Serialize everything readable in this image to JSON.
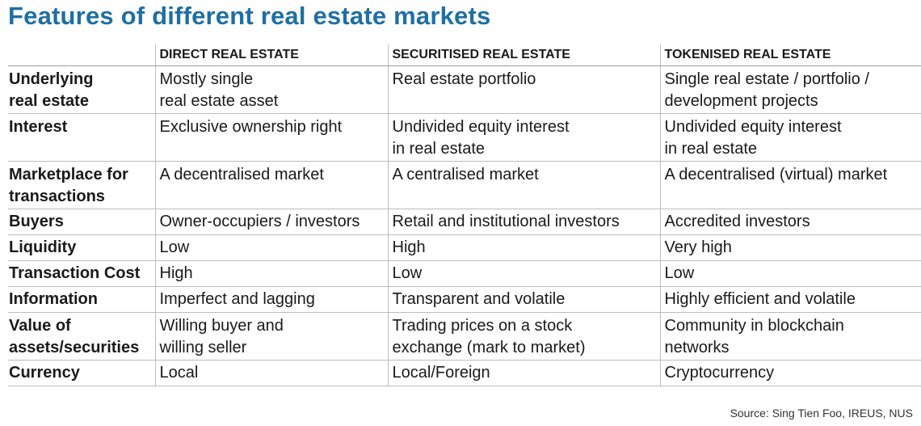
{
  "title": "Features of different real estate markets",
  "headers": [
    "",
    "DIRECT REAL ESTATE",
    "SECURITISED REAL ESTATE",
    "TOKENISED REAL ESTATE"
  ],
  "rows": [
    {
      "label": [
        "Underlying",
        "real estate"
      ],
      "direct": [
        "Mostly single",
        "real estate asset"
      ],
      "securitised": [
        "Real estate portfolio"
      ],
      "tokenised": [
        "Single real estate / portfolio /",
        "development projects"
      ]
    },
    {
      "label": [
        "Interest"
      ],
      "direct": [
        "Exclusive ownership right"
      ],
      "securitised": [
        "Undivided equity interest",
        "in real estate"
      ],
      "tokenised": [
        "Undivided equity interest",
        "in real estate"
      ]
    },
    {
      "label": [
        "Marketplace for",
        "transactions"
      ],
      "direct": [
        "A decentralised market"
      ],
      "securitised": [
        "A centralised market"
      ],
      "tokenised": [
        "A decentralised (virtual) market"
      ]
    },
    {
      "label": [
        "Buyers"
      ],
      "direct": [
        "Owner-occupiers / investors"
      ],
      "securitised": [
        "Retail and institutional investors"
      ],
      "tokenised": [
        "Accredited investors"
      ]
    },
    {
      "label": [
        "Liquidity"
      ],
      "direct": [
        "Low"
      ],
      "securitised": [
        "High"
      ],
      "tokenised": [
        "Very high"
      ]
    },
    {
      "label": [
        "Transaction Cost"
      ],
      "direct": [
        "High"
      ],
      "securitised": [
        "Low"
      ],
      "tokenised": [
        "Low"
      ]
    },
    {
      "label": [
        "Information"
      ],
      "direct": [
        "Imperfect and lagging"
      ],
      "securitised": [
        "Transparent and volatile"
      ],
      "tokenised": [
        "Highly efficient and volatile"
      ]
    },
    {
      "label": [
        "Value of",
        "assets/securities"
      ],
      "direct": [
        "Willing buyer and",
        "willing seller"
      ],
      "securitised": [
        "Trading prices on a stock",
        "exchange (mark to market)"
      ],
      "tokenised": [
        "Community in blockchain",
        "networks"
      ]
    },
    {
      "label": [
        "Currency"
      ],
      "direct": [
        "Local"
      ],
      "securitised": [
        "Local/Foreign"
      ],
      "tokenised": [
        "Cryptocurrency"
      ]
    }
  ],
  "source": "Source: Sing Tien Foo, IREUS, NUS",
  "colors": {
    "title": "#1f6fa3",
    "rule": "#bdbdbd"
  }
}
